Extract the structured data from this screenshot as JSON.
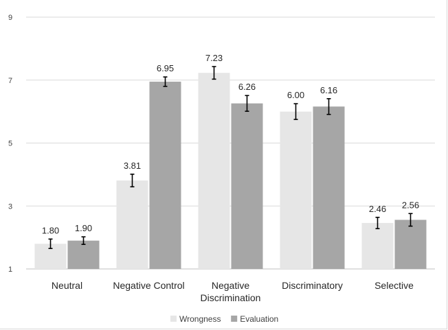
{
  "chart_data": {
    "type": "bar",
    "categories": [
      "Neutral",
      "Negative Control",
      "Negative Discrimination",
      "Discriminatory",
      "Selective"
    ],
    "category_label_lines": [
      [
        "Neutral"
      ],
      [
        "Negative Control"
      ],
      [
        "Negative",
        "Discrimination"
      ],
      [
        "Discriminatory"
      ],
      [
        "Selective"
      ]
    ],
    "series": [
      {
        "name": "Wrongness",
        "color": "#e6e6e6",
        "values": [
          1.8,
          3.81,
          7.23,
          6.0,
          2.46
        ],
        "labels": [
          "1.80",
          "3.81",
          "7.23",
          "6.00",
          "2.46"
        ],
        "error": [
          0.15,
          0.2,
          0.2,
          0.25,
          0.18
        ]
      },
      {
        "name": "Evaluation",
        "color": "#a6a6a6",
        "values": [
          1.9,
          6.95,
          6.26,
          6.16,
          2.56
        ],
        "labels": [
          "1.90",
          "6.95",
          "6.26",
          "6.16",
          "2.56"
        ],
        "error": [
          0.12,
          0.15,
          0.25,
          0.25,
          0.2
        ]
      }
    ],
    "ylim": [
      1,
      9
    ],
    "yticks": [
      1,
      3,
      5,
      7,
      9
    ],
    "ytick_labels": [
      "1",
      "3",
      "5",
      "7",
      "9"
    ],
    "grid": true,
    "legend_position": "bottom",
    "title": "",
    "xlabel": "",
    "ylabel": ""
  }
}
